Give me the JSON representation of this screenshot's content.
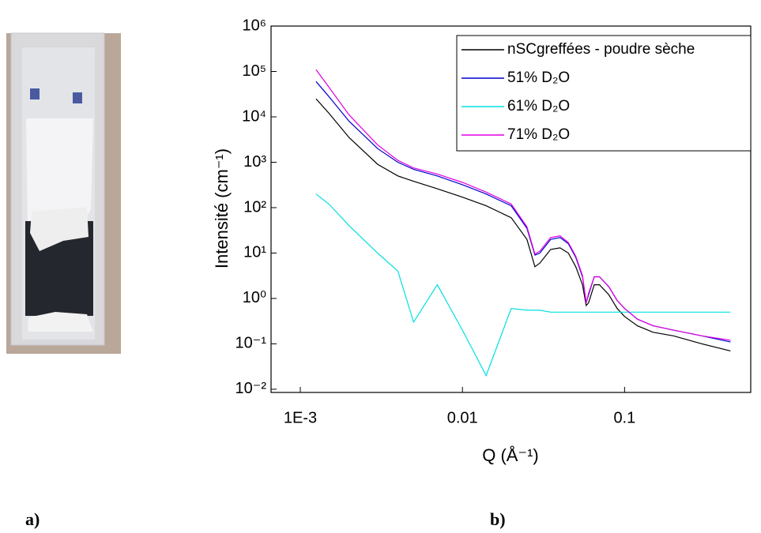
{
  "figure": {
    "panel_labels": [
      "a)",
      "b)"
    ]
  },
  "chart_data": {
    "type": "line",
    "log_x": true,
    "log_y": true,
    "x_label": "Q (Å⁻¹)",
    "y_label": "Intensité (cm⁻¹)",
    "legend": "upper right",
    "xlim": [
      0.00066,
      0.6
    ],
    "ylim": [
      0.0085,
      1000000
    ],
    "xticks": [
      {
        "value": 0.001,
        "label": "1E-3"
      },
      0.01,
      0.1
    ],
    "yticks": [
      {
        "value": 0.01,
        "label": "10⁻²"
      },
      {
        "value": 0.1,
        "label": "10⁻¹"
      },
      {
        "value": 1,
        "label": "10⁰"
      },
      {
        "value": 10,
        "label": "10¹"
      },
      {
        "value": 100,
        "label": "10²"
      },
      {
        "value": 1000,
        "label": "10³"
      },
      {
        "value": 10000,
        "label": "10⁴"
      },
      {
        "value": 100000,
        "label": "10⁵"
      },
      {
        "value": 1000000,
        "label": "10⁶"
      }
    ],
    "x": [
      0.00125,
      0.0015,
      0.002,
      0.003,
      0.004,
      0.005,
      0.007,
      0.01,
      0.014,
      0.02,
      0.025,
      0.028,
      0.03,
      0.035,
      0.04,
      0.045,
      0.05,
      0.055,
      0.058,
      0.06,
      0.065,
      0.07,
      0.08,
      0.09,
      0.1,
      0.12,
      0.15,
      0.2,
      0.3,
      0.45
    ],
    "series": [
      {
        "name": "nSCgreffées - poudre sèche",
        "color": "#000000",
        "values": [
          25000,
          12000,
          3500,
          900,
          500,
          380,
          260,
          170,
          110,
          60,
          20,
          5,
          6,
          12,
          13,
          10,
          5,
          2,
          0.7,
          0.8,
          2,
          2,
          1.2,
          0.6,
          0.4,
          0.25,
          0.18,
          0.15,
          0.1,
          0.07
        ]
      },
      {
        "name": "51% D₂O",
        "color": "#0000cc",
        "values": [
          60000,
          28000,
          8000,
          2000,
          1000,
          700,
          500,
          320,
          200,
          110,
          35,
          9,
          10,
          20,
          22,
          16,
          8,
          3,
          0.8,
          1.2,
          3,
          3,
          1.8,
          0.9,
          0.6,
          0.35,
          0.25,
          0.2,
          0.15,
          0.11
        ]
      },
      {
        "name": "61% D₂O",
        "color": "#00e0e0",
        "values": [
          200,
          120,
          40,
          10,
          4,
          0.3,
          2,
          0.2,
          0.02,
          0.6,
          0.55,
          0.55,
          0.55,
          0.5,
          0.5,
          0.5,
          0.5,
          0.5,
          0.5,
          0.5,
          0.5,
          0.5,
          0.5,
          0.5,
          0.5,
          0.5,
          0.5,
          0.5,
          0.5,
          0.5
        ]
      },
      {
        "name": "71% D₂O",
        "color": "#e000e0",
        "values": [
          110000,
          45000,
          11000,
          2400,
          1100,
          750,
          550,
          360,
          220,
          120,
          38,
          9.5,
          11,
          22,
          24,
          17,
          8.5,
          3.2,
          0.8,
          1.3,
          3,
          3,
          1.8,
          0.9,
          0.6,
          0.35,
          0.25,
          0.2,
          0.15,
          0.12
        ]
      }
    ]
  }
}
